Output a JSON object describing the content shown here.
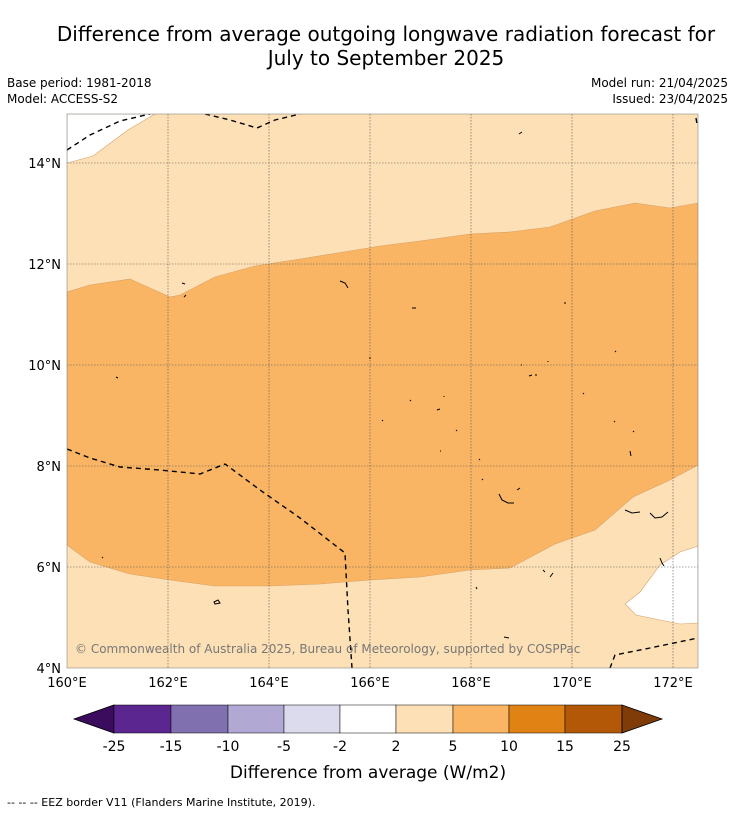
{
  "title_line1": "Difference from average outgoing longwave radiation forecast for",
  "title_line2": "July to September 2025",
  "base_period": "Base period: 1981-2018",
  "model": "Model: ACCESS-S2",
  "model_run": "Model run: 21/04/2025",
  "issued": "Issued: 23/04/2025",
  "copyright": "© Commonwealth of Australia 2025, Bureau of Meteorology, supported by COSPPac",
  "x_ticks": [
    "160°E",
    "162°E",
    "164°E",
    "166°E",
    "168°E",
    "170°E",
    "172°E"
  ],
  "y_ticks": [
    "14°N",
    "12°N",
    "10°N",
    "8°N",
    "6°N",
    "4°N"
  ],
  "colorbar": {
    "label": "Difference from average (W/m2)",
    "tick_labels": [
      "-25",
      "-15",
      "-10",
      "-5",
      "-2",
      "2",
      "5",
      "10",
      "15",
      "25"
    ],
    "colors": [
      "#3b0b5e",
      "#5c2690",
      "#8170b0",
      "#b1a8d3",
      "#dcdbee",
      "#ffffff",
      "#fde0b5",
      "#f9b563",
      "#e08214",
      "#b35806",
      "#7f3b08"
    ]
  },
  "legend_note": "--  --  -- EEZ border V11 (Flanders Marine Institute, 2019).",
  "map_data": {
    "lon_range": [
      160,
      172.5
    ],
    "lat_range": [
      4,
      15
    ],
    "dominant_category": "5 to 10",
    "secondary_category": "2 to 5",
    "minor_category": "-2 to 2"
  }
}
